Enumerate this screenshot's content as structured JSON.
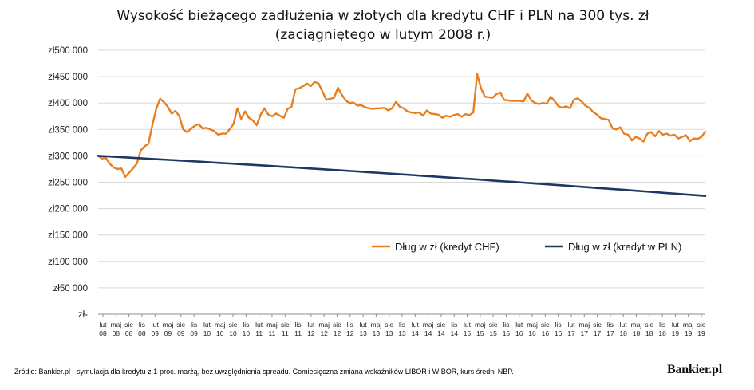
{
  "chart_data": {
    "type": "line",
    "title": "Wysokość bieżącego zadłużenia w złotych dla kredytu CHF i PLN na 300 tys. zł (zaciągniętego w lutym 2008 r.)",
    "xlabel": "",
    "ylabel": "",
    "ylim": [
      0,
      500000
    ],
    "yticks": [
      {
        "value": 500000,
        "label": "zł500 000"
      },
      {
        "value": 450000,
        "label": "zł450 000"
      },
      {
        "value": 400000,
        "label": "zł400 000"
      },
      {
        "value": 350000,
        "label": "zł350 000"
      },
      {
        "value": 300000,
        "label": "zł300 000"
      },
      {
        "value": 250000,
        "label": "zł250 000"
      },
      {
        "value": 200000,
        "label": "zł200 000"
      },
      {
        "value": 150000,
        "label": "zł150 000"
      },
      {
        "value": 100000,
        "label": "zł100 000"
      },
      {
        "value": 50000,
        "label": "zł50 000"
      },
      {
        "value": 0,
        "label": "zł-"
      }
    ],
    "x_ticks": [
      {
        "month": "lut",
        "year": "08"
      },
      {
        "month": "maj",
        "year": "08"
      },
      {
        "month": "sie",
        "year": "08"
      },
      {
        "month": "lis",
        "year": "08"
      },
      {
        "month": "lut",
        "year": "09"
      },
      {
        "month": "maj",
        "year": "09"
      },
      {
        "month": "sie",
        "year": "09"
      },
      {
        "month": "lis",
        "year": "09"
      },
      {
        "month": "lut",
        "year": "10"
      },
      {
        "month": "maj",
        "year": "10"
      },
      {
        "month": "sie",
        "year": "10"
      },
      {
        "month": "lis",
        "year": "10"
      },
      {
        "month": "lut",
        "year": "11"
      },
      {
        "month": "maj",
        "year": "11"
      },
      {
        "month": "sie",
        "year": "11"
      },
      {
        "month": "lis",
        "year": "11"
      },
      {
        "month": "lut",
        "year": "12"
      },
      {
        "month": "maj",
        "year": "12"
      },
      {
        "month": "sie",
        "year": "12"
      },
      {
        "month": "lis",
        "year": "12"
      },
      {
        "month": "lut",
        "year": "13"
      },
      {
        "month": "maj",
        "year": "13"
      },
      {
        "month": "sie",
        "year": "13"
      },
      {
        "month": "lis",
        "year": "13"
      },
      {
        "month": "lut",
        "year": "14"
      },
      {
        "month": "maj",
        "year": "14"
      },
      {
        "month": "sie",
        "year": "14"
      },
      {
        "month": "lis",
        "year": "14"
      },
      {
        "month": "lut",
        "year": "15"
      },
      {
        "month": "maj",
        "year": "15"
      },
      {
        "month": "sie",
        "year": "15"
      },
      {
        "month": "lis",
        "year": "15"
      },
      {
        "month": "lut",
        "year": "16"
      },
      {
        "month": "maj",
        "year": "16"
      },
      {
        "month": "sie",
        "year": "16"
      },
      {
        "month": "lis",
        "year": "16"
      },
      {
        "month": "lut",
        "year": "17"
      },
      {
        "month": "maj",
        "year": "17"
      },
      {
        "month": "sie",
        "year": "17"
      },
      {
        "month": "lis",
        "year": "17"
      },
      {
        "month": "lut",
        "year": "18"
      },
      {
        "month": "maj",
        "year": "18"
      },
      {
        "month": "sie",
        "year": "18"
      },
      {
        "month": "lis",
        "year": "18"
      },
      {
        "month": "lut",
        "year": "19"
      },
      {
        "month": "maj",
        "year": "19"
      },
      {
        "month": "sie",
        "year": "19"
      }
    ],
    "grid": "horizontal",
    "legend_position": "center-right",
    "series": [
      {
        "name": "Dług w zł (kredyt CHF)",
        "color": "#E97E1E",
        "values": [
          300000,
          295000,
          296000,
          285000,
          278000,
          275000,
          276000,
          260000,
          268000,
          276000,
          285000,
          310000,
          318000,
          323000,
          358000,
          388000,
          408000,
          402000,
          393000,
          380000,
          385000,
          375000,
          350000,
          345000,
          351000,
          357000,
          360000,
          352000,
          353000,
          350000,
          347000,
          340000,
          342000,
          342000,
          350000,
          360000,
          390000,
          370000,
          384000,
          372000,
          367000,
          358000,
          378000,
          390000,
          378000,
          375000,
          380000,
          376000,
          372000,
          389000,
          393000,
          426000,
          428000,
          432000,
          437000,
          432000,
          440000,
          437000,
          422000,
          406000,
          408000,
          410000,
          429000,
          416000,
          405000,
          400000,
          401000,
          395000,
          396000,
          392000,
          390000,
          389000,
          390000,
          390000,
          391000,
          386000,
          390000,
          402000,
          393000,
          390000,
          384000,
          382000,
          381000,
          382000,
          376000,
          386000,
          380000,
          379000,
          378000,
          372000,
          376000,
          374000,
          377000,
          379000,
          374000,
          379000,
          377000,
          382000,
          455000,
          428000,
          412000,
          411000,
          410000,
          417000,
          420000,
          406000,
          405000,
          404000,
          404000,
          404000,
          403000,
          418000,
          405000,
          400000,
          398000,
          400000,
          399000,
          412000,
          404000,
          394000,
          391000,
          394000,
          390000,
          406000,
          409000,
          403000,
          395000,
          391000,
          383000,
          378000,
          371000,
          370000,
          368000,
          352000,
          350000,
          354000,
          342000,
          340000,
          329000,
          336000,
          333000,
          327000,
          342000,
          345000,
          337000,
          347000,
          340000,
          342000,
          338000,
          340000,
          333000,
          336000,
          339000,
          328000,
          333000,
          332000,
          336000,
          346000
        ]
      },
      {
        "name": "Dług w zł (kredyt w PLN)",
        "color": "#1F3763",
        "values": [
          300000,
          224000
        ]
      }
    ]
  },
  "source_note": "Źródło: Bankier.pl - symulacja dla kredytu z 1-proc. marżą, bez uwzględnienia spreadu. Comiesięczna zmiana wskaźników LIBOR i WIBOR, kurs średni NBP.",
  "brand": "Bankier.pl"
}
